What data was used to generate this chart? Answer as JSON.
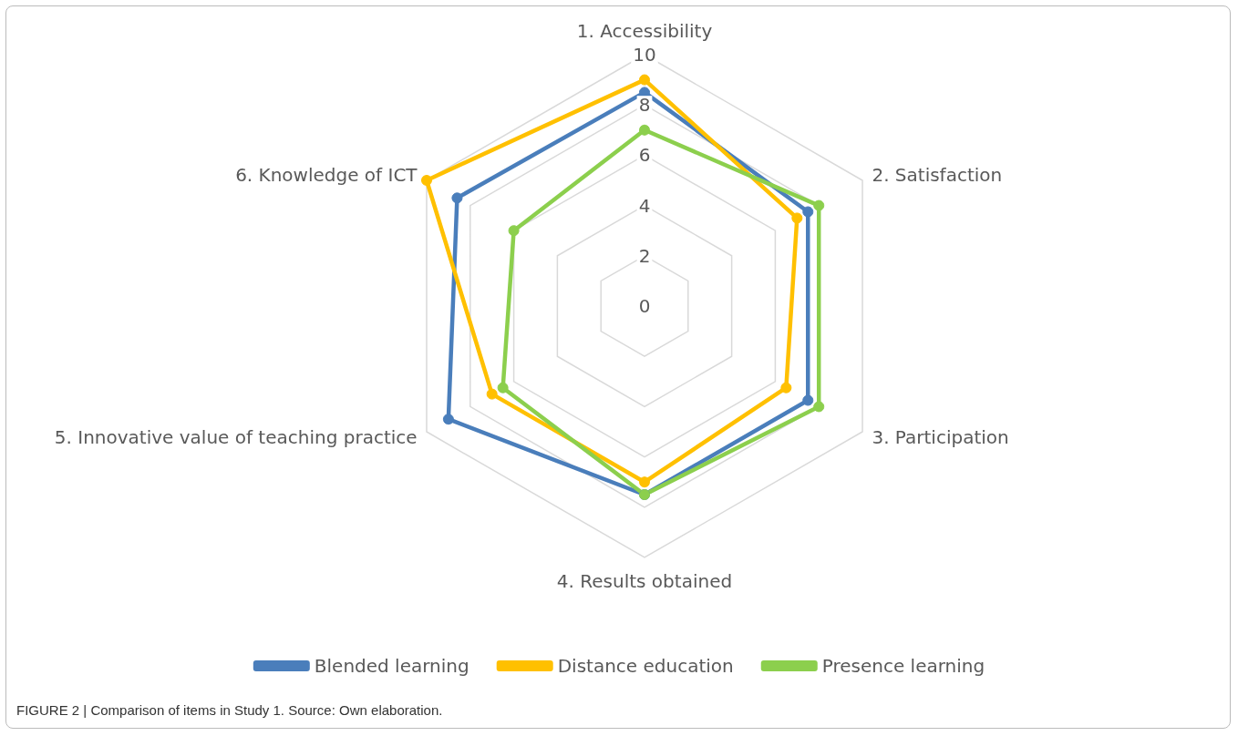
{
  "chart_data": {
    "type": "radar",
    "categories": [
      "1. Accessibility",
      "2. Satisfaction",
      "3. Participation",
      "4. Results obtained",
      "5. Innovative value of teaching practice",
      "6. Knowledge of ICT"
    ],
    "series": [
      {
        "name": "Blended learning",
        "color": "#4a7ebb",
        "values": [
          8.5,
          7.5,
          7.5,
          7.5,
          9,
          8.6
        ]
      },
      {
        "name": "Distance education",
        "color": "#ffc000",
        "values": [
          9,
          7,
          6.5,
          7,
          7,
          10
        ]
      },
      {
        "name": "Presence learning",
        "color": "#8ccf4d",
        "values": [
          7,
          8,
          8,
          7.5,
          6.5,
          6
        ]
      }
    ],
    "ylim": [
      0,
      10
    ],
    "yticks": [
      0,
      2,
      4,
      6,
      8,
      10
    ],
    "grid": true,
    "legend": "bottom",
    "marker": "circle",
    "annotations": [
      "FIGURE 2 | Comparison of items in Study 1. Source: Own elaboration."
    ]
  }
}
